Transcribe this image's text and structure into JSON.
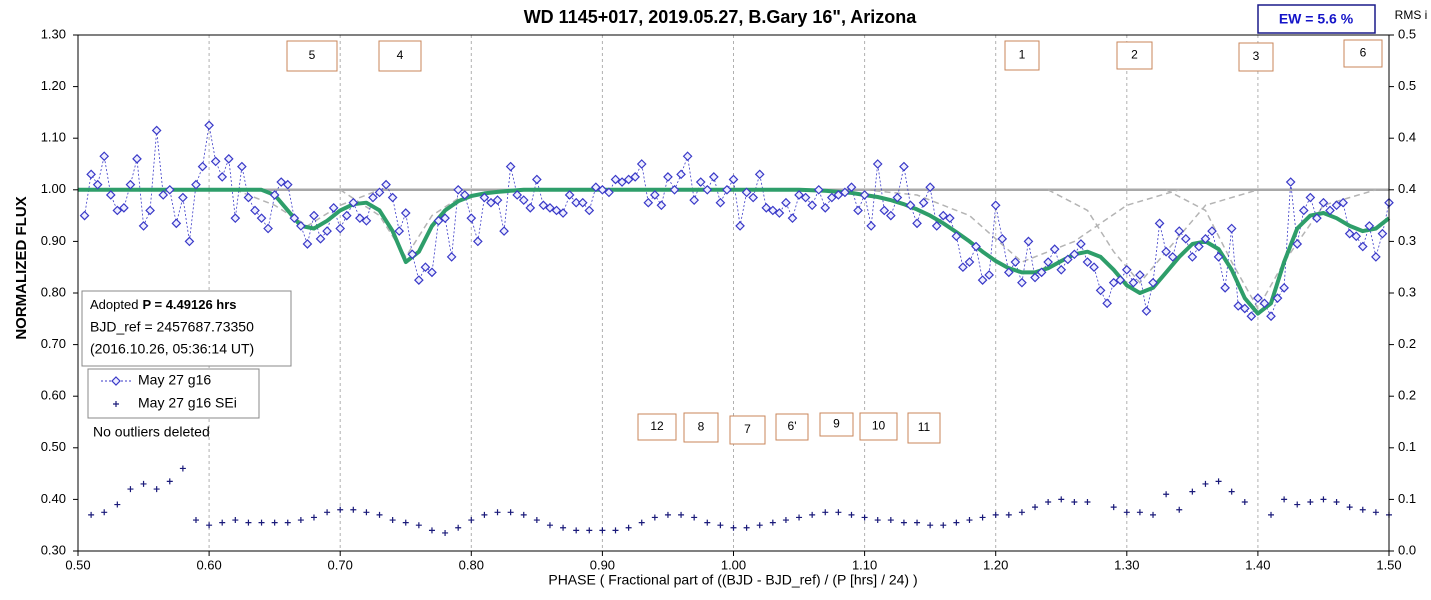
{
  "chart_data": {
    "type": "scatter",
    "title": "WD 1145+017, 2019.05.27, B.Gary 16\", Arizona",
    "x_label": "PHASE ( Fractional part of ((BJD - BJD_ref) / (P [hrs] / 24) )",
    "y_label": "NORMALIZED FLUX",
    "y2_label": "RMS i",
    "ew_label": "EW =  5.6 %",
    "info": [
      "Adopted",
      "P = 4.49126 hrs",
      "BJD_ref = 2457687.73350",
      "(2016.10.26, 05:36:14 UT)"
    ],
    "note": "No outliers deleted",
    "annotations": [
      "5",
      "4",
      "1",
      "2",
      "3",
      "6",
      "12",
      "8",
      "7",
      "6'",
      "9",
      "10",
      "11"
    ],
    "grid": "x",
    "xlim": [
      0.5,
      1.5
    ],
    "xticks": [
      {
        "value": 0.5,
        "label": "0.50"
      },
      {
        "value": 0.6,
        "label": "0.60"
      },
      {
        "value": 0.7,
        "label": "0.70"
      },
      {
        "value": 0.8,
        "label": "0.80"
      },
      {
        "value": 0.9,
        "label": "0.90"
      },
      {
        "value": 1.0,
        "label": "1.00"
      },
      {
        "value": 1.1,
        "label": "1.10"
      },
      {
        "value": 1.2,
        "label": "1.20"
      },
      {
        "value": 1.3,
        "label": "1.30"
      },
      {
        "value": 1.4,
        "label": "1.40"
      },
      {
        "value": 1.5,
        "label": "1.50"
      }
    ],
    "ylim": [
      0.3,
      1.3
    ],
    "yticks": [
      {
        "value": 0.3,
        "label": "0.30"
      },
      {
        "value": 0.4,
        "label": "0.40"
      },
      {
        "value": 0.5,
        "label": "0.50"
      },
      {
        "value": 0.6,
        "label": "0.60"
      },
      {
        "value": 0.7,
        "label": "0.70"
      },
      {
        "value": 0.8,
        "label": "0.80"
      },
      {
        "value": 0.9,
        "label": "0.90"
      },
      {
        "value": 1.0,
        "label": "1.00"
      },
      {
        "value": 1.1,
        "label": "1.10"
      },
      {
        "value": 1.2,
        "label": "1.20"
      },
      {
        "value": 1.3,
        "label": "1.30"
      }
    ],
    "y2lim": [
      0,
      0.5
    ],
    "y2ticks": [
      {
        "value": 0,
        "label": "0.0"
      },
      {
        "value": 0.05,
        "label": "0.1"
      },
      {
        "value": 0.1,
        "label": "0.1"
      },
      {
        "value": 0.15,
        "label": "0.2"
      },
      {
        "value": 0.2,
        "label": "0.2"
      },
      {
        "value": 0.25,
        "label": "0.3"
      },
      {
        "value": 0.3,
        "label": "0.3"
      },
      {
        "value": 0.35,
        "label": "0.4"
      },
      {
        "value": 0.4,
        "label": "0.4"
      },
      {
        "value": 0.45,
        "label": "0.5"
      },
      {
        "value": 0.5,
        "label": "0.5"
      }
    ],
    "series": [
      {
        "name": "May 27 g16",
        "color": "#3a3ac8",
        "x": [
          0.505,
          0.51,
          0.515,
          0.52,
          0.525,
          0.53,
          0.535,
          0.54,
          0.545,
          0.55,
          0.555,
          0.56,
          0.565,
          0.57,
          0.575,
          0.58,
          0.585,
          0.59,
          0.595,
          0.6,
          0.605,
          0.61,
          0.615,
          0.62,
          0.625,
          0.63,
          0.635,
          0.64,
          0.645,
          0.65,
          0.655,
          0.66,
          0.665,
          0.67,
          0.675,
          0.68,
          0.685,
          0.69,
          0.695,
          0.7,
          0.705,
          0.71,
          0.715,
          0.72,
          0.725,
          0.73,
          0.735,
          0.74,
          0.745,
          0.75,
          0.755,
          0.76,
          0.765,
          0.77,
          0.775,
          0.78,
          0.785,
          0.79,
          0.795,
          0.8,
          0.805,
          0.81,
          0.815,
          0.82,
          0.825,
          0.83,
          0.835,
          0.84,
          0.845,
          0.85,
          0.855,
          0.86,
          0.865,
          0.87,
          0.875,
          0.88,
          0.885,
          0.89,
          0.895,
          0.9,
          0.905,
          0.91,
          0.915,
          0.92,
          0.925,
          0.93,
          0.935,
          0.94,
          0.945,
          0.95,
          0.955,
          0.96,
          0.965,
          0.97,
          0.975,
          0.98,
          0.985,
          0.99,
          0.995,
          1.0,
          1.005,
          1.01,
          1.015,
          1.02,
          1.025,
          1.03,
          1.035,
          1.04,
          1.045,
          1.05,
          1.055,
          1.06,
          1.065,
          1.07,
          1.075,
          1.08,
          1.085,
          1.09,
          1.095,
          1.1,
          1.105,
          1.11,
          1.115,
          1.12,
          1.125,
          1.13,
          1.135,
          1.14,
          1.145,
          1.15,
          1.155,
          1.16,
          1.165,
          1.17,
          1.175,
          1.18,
          1.185,
          1.19,
          1.195,
          1.2,
          1.205,
          1.21,
          1.215,
          1.22,
          1.225,
          1.23,
          1.235,
          1.24,
          1.245,
          1.25,
          1.255,
          1.26,
          1.265,
          1.27,
          1.275,
          1.28,
          1.285,
          1.29,
          1.295,
          1.3,
          1.305,
          1.31,
          1.315,
          1.32,
          1.325,
          1.33,
          1.335,
          1.34,
          1.345,
          1.35,
          1.355,
          1.36,
          1.365,
          1.37,
          1.375,
          1.38,
          1.385,
          1.39,
          1.395,
          1.4,
          1.405,
          1.41,
          1.415,
          1.42,
          1.425,
          1.43,
          1.435,
          1.44,
          1.445,
          1.45,
          1.455,
          1.46,
          1.465,
          1.47,
          1.475,
          1.48,
          1.485,
          1.49,
          1.495,
          1.5
        ],
        "values": [
          0.95,
          1.03,
          1.01,
          1.065,
          0.99,
          0.96,
          0.965,
          1.01,
          1.06,
          0.93,
          0.96,
          1.115,
          0.99,
          1.0,
          0.935,
          0.985,
          0.9,
          1.01,
          1.045,
          1.125,
          1.055,
          1.025,
          1.06,
          0.945,
          1.045,
          0.985,
          0.96,
          0.945,
          0.925,
          0.99,
          1.015,
          1.01,
          0.945,
          0.93,
          0.895,
          0.95,
          0.905,
          0.92,
          0.965,
          0.925,
          0.95,
          0.975,
          0.945,
          0.94,
          0.985,
          0.995,
          1.01,
          0.985,
          0.92,
          0.955,
          0.875,
          0.825,
          0.85,
          0.84,
          0.94,
          0.945,
          0.87,
          1.0,
          0.99,
          0.945,
          0.9,
          0.985,
          0.975,
          0.98,
          0.92,
          1.045,
          0.99,
          0.98,
          0.965,
          1.02,
          0.97,
          0.965,
          0.96,
          0.955,
          0.99,
          0.975,
          0.975,
          0.96,
          1.005,
          1.0,
          0.995,
          1.02,
          1.015,
          1.02,
          1.025,
          1.05,
          0.975,
          0.99,
          0.97,
          1.025,
          1.0,
          1.03,
          1.065,
          0.98,
          1.015,
          1.0,
          1.025,
          0.975,
          1.0,
          1.02,
          0.93,
          0.995,
          0.985,
          1.03,
          0.965,
          0.96,
          0.955,
          0.975,
          0.945,
          0.99,
          0.985,
          0.97,
          1.0,
          0.965,
          0.985,
          0.99,
          0.995,
          1.005,
          0.96,
          0.99,
          0.93,
          1.05,
          0.96,
          0.95,
          0.985,
          1.045,
          0.97,
          0.935,
          0.975,
          1.005,
          0.93,
          0.95,
          0.945,
          0.91,
          0.85,
          0.86,
          0.89,
          0.825,
          0.835,
          0.97,
          0.905,
          0.84,
          0.86,
          0.82,
          0.9,
          0.83,
          0.84,
          0.86,
          0.885,
          0.845,
          0.865,
          0.875,
          0.895,
          0.86,
          0.85,
          0.805,
          0.78,
          0.82,
          0.825,
          0.845,
          0.82,
          0.835,
          0.765,
          0.82,
          0.935,
          0.88,
          0.87,
          0.92,
          0.905,
          0.87,
          0.89,
          0.905,
          0.92,
          0.87,
          0.81,
          0.925,
          0.775,
          0.77,
          0.755,
          0.79,
          0.78,
          0.755,
          0.79,
          0.81,
          1.015,
          0.895,
          0.96,
          0.985,
          0.945,
          0.975,
          0.96,
          0.97,
          0.975,
          0.915,
          0.91,
          0.89,
          0.93,
          0.87,
          0.915,
          0.975
        ]
      },
      {
        "name": "May 27 g16 SEi",
        "color": "#1a1a7a",
        "x": [
          0.51,
          0.52,
          0.53,
          0.54,
          0.55,
          0.56,
          0.57,
          0.58,
          0.59,
          0.6,
          0.61,
          0.62,
          0.63,
          0.64,
          0.65,
          0.66,
          0.67,
          0.68,
          0.69,
          0.7,
          0.71,
          0.72,
          0.73,
          0.74,
          0.75,
          0.76,
          0.77,
          0.78,
          0.79,
          0.8,
          0.81,
          0.82,
          0.83,
          0.84,
          0.85,
          0.86,
          0.87,
          0.88,
          0.89,
          0.9,
          0.91,
          0.92,
          0.93,
          0.94,
          0.95,
          0.96,
          0.97,
          0.98,
          0.99,
          1.0,
          1.01,
          1.02,
          1.03,
          1.04,
          1.05,
          1.06,
          1.07,
          1.08,
          1.09,
          1.1,
          1.11,
          1.12,
          1.13,
          1.14,
          1.15,
          1.16,
          1.17,
          1.18,
          1.19,
          1.2,
          1.21,
          1.22,
          1.23,
          1.24,
          1.25,
          1.26,
          1.27,
          1.28,
          1.29,
          1.3,
          1.31,
          1.32,
          1.33,
          1.34,
          1.35,
          1.36,
          1.37,
          1.38,
          1.39,
          1.4,
          1.41,
          1.42,
          1.43,
          1.44,
          1.45,
          1.46,
          1.47,
          1.48,
          1.49,
          1.5
        ],
        "values": [
          0.37,
          0.375,
          0.39,
          0.42,
          0.43,
          0.42,
          0.435,
          0.46,
          0.36,
          0.35,
          0.355,
          0.36,
          0.355,
          0.355,
          0.355,
          0.355,
          0.36,
          0.365,
          0.375,
          0.38,
          0.38,
          0.375,
          0.37,
          0.36,
          0.355,
          0.35,
          0.34,
          0.335,
          0.345,
          0.36,
          0.37,
          0.375,
          0.375,
          0.37,
          0.36,
          0.35,
          0.345,
          0.34,
          0.34,
          0.34,
          0.34,
          0.345,
          0.355,
          0.365,
          0.37,
          0.37,
          0.365,
          0.355,
          0.35,
          0.345,
          0.345,
          0.35,
          0.355,
          0.36,
          0.365,
          0.37,
          0.375,
          0.375,
          0.37,
          0.365,
          0.36,
          0.36,
          0.355,
          0.355,
          0.35,
          0.35,
          0.355,
          0.36,
          0.365,
          0.37,
          0.37,
          0.375,
          0.385,
          0.395,
          0.4,
          0.395,
          0.395,
          null,
          0.385,
          0.375,
          0.375,
          0.37,
          0.41,
          0.38,
          0.415,
          0.43,
          0.435,
          0.415,
          0.395,
          null,
          0.37,
          0.4,
          0.39,
          0.395,
          0.4,
          0.395,
          0.385,
          0.38,
          0.375,
          0.37
        ]
      }
    ],
    "model": {
      "color": "#2e9e6a",
      "x": [
        0.5,
        0.51,
        0.52,
        0.53,
        0.54,
        0.55,
        0.56,
        0.57,
        0.58,
        0.59,
        0.6,
        0.61,
        0.62,
        0.63,
        0.64,
        0.65,
        0.66,
        0.67,
        0.68,
        0.69,
        0.7,
        0.71,
        0.72,
        0.73,
        0.74,
        0.75,
        0.76,
        0.77,
        0.78,
        0.79,
        0.8,
        0.81,
        0.82,
        0.83,
        0.84,
        0.85,
        0.86,
        0.87,
        0.88,
        0.89,
        0.9,
        0.91,
        0.92,
        0.93,
        0.94,
        0.95,
        0.96,
        0.97,
        0.98,
        0.99,
        1.0,
        1.01,
        1.02,
        1.03,
        1.04,
        1.05,
        1.06,
        1.07,
        1.08,
        1.09,
        1.1,
        1.11,
        1.12,
        1.13,
        1.14,
        1.15,
        1.16,
        1.17,
        1.18,
        1.19,
        1.2,
        1.21,
        1.22,
        1.23,
        1.24,
        1.25,
        1.26,
        1.27,
        1.28,
        1.29,
        1.3,
        1.31,
        1.32,
        1.33,
        1.34,
        1.35,
        1.36,
        1.37,
        1.38,
        1.39,
        1.4,
        1.41,
        1.42,
        1.43,
        1.44,
        1.45,
        1.46,
        1.47,
        1.48,
        1.49,
        1.5
      ],
      "values": [
        1.0,
        1.0,
        1.0,
        1.0,
        1.0,
        1.0,
        1.0,
        1.0,
        1.0,
        1.0,
        1.0,
        1.0,
        1.0,
        1.0,
        1.0,
        0.99,
        0.96,
        0.93,
        0.925,
        0.94,
        0.96,
        0.972,
        0.975,
        0.96,
        0.92,
        0.86,
        0.88,
        0.93,
        0.96,
        0.978,
        0.988,
        0.993,
        0.996,
        0.998,
        1.0,
        1.0,
        1.0,
        1.0,
        1.0,
        1.0,
        1.0,
        1.0,
        1.0,
        1.0,
        1.0,
        1.0,
        1.0,
        1.0,
        1.0,
        1.0,
        1.0,
        1.0,
        1.0,
        1.0,
        1.0,
        1.0,
        0.999,
        0.998,
        0.996,
        0.994,
        0.99,
        0.986,
        0.98,
        0.972,
        0.962,
        0.95,
        0.935,
        0.918,
        0.9,
        0.88,
        0.862,
        0.848,
        0.84,
        0.84,
        0.848,
        0.862,
        0.875,
        0.88,
        0.87,
        0.845,
        0.815,
        0.8,
        0.81,
        0.84,
        0.87,
        0.895,
        0.9,
        0.885,
        0.845,
        0.79,
        0.76,
        0.78,
        0.86,
        0.925,
        0.95,
        0.955,
        0.945,
        0.93,
        0.92,
        0.925,
        0.945
      ]
    },
    "components": [
      {
        "color": "#a8a8a8",
        "x": [
          0.5,
          1.5
        ],
        "values": [
          1.0,
          1.0
        ]
      },
      {
        "color": "#b4b4b4",
        "x": [
          0.62,
          0.65,
          0.675,
          0.7,
          0.73
        ],
        "values": [
          1.0,
          0.97,
          0.93,
          0.97,
          1.0
        ]
      },
      {
        "color": "#b4b4b4",
        "x": [
          0.7,
          0.73,
          0.75,
          0.77,
          0.8
        ],
        "values": [
          1.0,
          0.95,
          0.87,
          0.95,
          1.0
        ]
      },
      {
        "color": "#b4b4b4",
        "x": [
          1.1,
          1.14,
          1.18,
          1.22,
          1.26,
          1.3,
          1.34
        ],
        "values": [
          1.0,
          0.99,
          0.95,
          0.86,
          0.9,
          0.97,
          1.0
        ]
      },
      {
        "color": "#b4b4b4",
        "x": [
          1.24,
          1.27,
          1.29,
          1.31,
          1.33,
          1.36,
          1.4
        ],
        "values": [
          1.0,
          0.96,
          0.88,
          0.82,
          0.88,
          0.97,
          1.0
        ]
      },
      {
        "color": "#b4b4b4",
        "x": [
          1.33,
          1.36,
          1.38,
          1.4,
          1.42,
          1.45,
          1.49
        ],
        "values": [
          1.0,
          0.96,
          0.86,
          0.77,
          0.86,
          0.97,
          1.0
        ]
      }
    ]
  }
}
